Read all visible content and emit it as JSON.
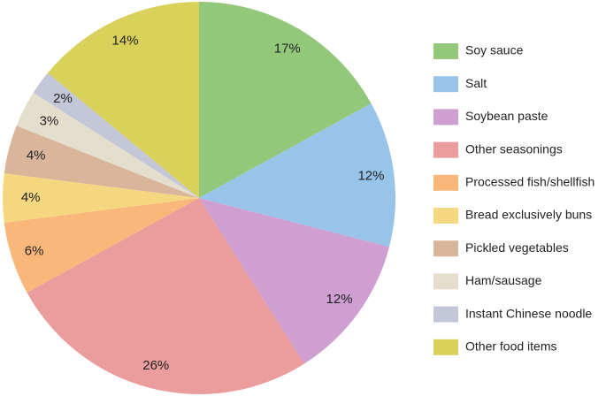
{
  "chart_data": {
    "type": "pie",
    "categories": [
      "Soy sauce",
      "Salt",
      "Soybean paste",
      "Other seasonings",
      "Processed fish/shellfish",
      "Bread exclusively buns",
      "Pickled vegetables",
      "Ham/sausage",
      "Instant Chinese noodle",
      "Other food items"
    ],
    "values": [
      17,
      12,
      12,
      26,
      6,
      4,
      4,
      3,
      2,
      14
    ],
    "value_labels": [
      "17%",
      "12%",
      "12%",
      "26%",
      "6%",
      "4%",
      "4%",
      "3%",
      "2%",
      "14%"
    ],
    "colors": [
      "#93c87a",
      "#98c4ea",
      "#cf9fd1",
      "#eb9c9c",
      "#f9b87a",
      "#f4d77f",
      "#d9b59c",
      "#e3dfcc",
      "#c4c7d8",
      "#d9d15a"
    ],
    "legend": "right"
  }
}
